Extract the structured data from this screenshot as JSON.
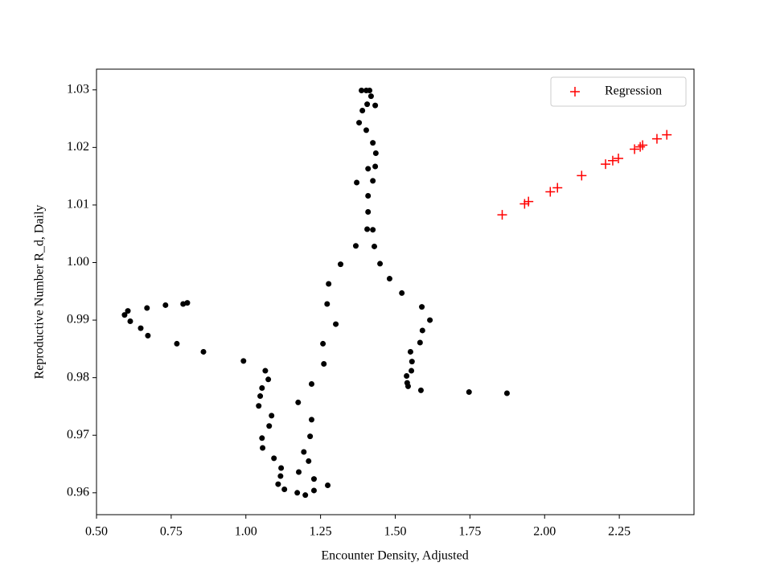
{
  "chart_data": {
    "type": "scatter",
    "xlabel": "Encounter Density, Adjusted",
    "ylabel": "Reproductive Number R_d, Daily",
    "xlim": [
      0.5,
      2.5
    ],
    "ylim": [
      0.9562,
      1.0336
    ],
    "xticks": [
      {
        "value": 0.5,
        "label": "0.50"
      },
      {
        "value": 0.75,
        "label": "0.75"
      },
      {
        "value": 1.0,
        "label": "1.00"
      },
      {
        "value": 1.25,
        "label": "1.25"
      },
      {
        "value": 1.5,
        "label": "1.50"
      },
      {
        "value": 1.75,
        "label": "1.75"
      },
      {
        "value": 2.0,
        "label": "2.00"
      },
      {
        "value": 2.25,
        "label": "2.25"
      }
    ],
    "yticks": [
      {
        "value": 0.96,
        "label": "0.96"
      },
      {
        "value": 0.97,
        "label": "0.97"
      },
      {
        "value": 0.98,
        "label": "0.98"
      },
      {
        "value": 0.99,
        "label": "0.99"
      },
      {
        "value": 1.0,
        "label": "1.00"
      },
      {
        "value": 1.01,
        "label": "1.01"
      },
      {
        "value": 1.02,
        "label": "1.02"
      },
      {
        "value": 1.03,
        "label": "1.03"
      }
    ],
    "legend": "upper right",
    "series": [
      {
        "color": "#000000",
        "marker": "o",
        "x": [
          0.594,
          0.605,
          0.613,
          0.648,
          0.672,
          0.669,
          0.731,
          0.769,
          0.79,
          0.804,
          0.858,
          0.992,
          1.065,
          1.075,
          1.054,
          1.048,
          1.043,
          1.086,
          1.078,
          1.054,
          1.056,
          1.094,
          1.118,
          1.116,
          1.108,
          1.129,
          1.172,
          1.199,
          1.228,
          1.228,
          1.274,
          1.177,
          1.21,
          1.194,
          1.215,
          1.22,
          1.175,
          1.22,
          1.261,
          1.258,
          1.272,
          1.277,
          1.301,
          1.317,
          1.368,
          1.371,
          1.379,
          1.39,
          1.387,
          1.403,
          1.414,
          1.419,
          1.406,
          1.433,
          1.403,
          1.425,
          1.435,
          1.433,
          1.409,
          1.425,
          1.409,
          1.409,
          1.425,
          1.406,
          1.43,
          1.449,
          1.481,
          1.522,
          1.589,
          1.616,
          1.591,
          1.583,
          1.551,
          1.556,
          1.554,
          1.538,
          1.54,
          1.543,
          1.586,
          1.747,
          1.874
        ],
        "values": [
          0.9909,
          0.9916,
          0.9898,
          0.9886,
          0.9873,
          0.9921,
          0.9926,
          0.9859,
          0.9928,
          0.993,
          0.9845,
          0.9829,
          0.9812,
          0.9797,
          0.9782,
          0.9768,
          0.9751,
          0.9734,
          0.9716,
          0.9695,
          0.9678,
          0.966,
          0.9643,
          0.9629,
          0.9615,
          0.9606,
          0.96,
          0.9596,
          0.9604,
          0.9624,
          0.9613,
          0.9636,
          0.9655,
          0.9671,
          0.9698,
          0.9727,
          0.9757,
          0.9789,
          0.9824,
          0.9859,
          0.9928,
          0.9963,
          0.9893,
          0.9997,
          1.0029,
          1.0139,
          1.0243,
          1.0264,
          1.0299,
          1.0299,
          1.0299,
          1.0289,
          1.0275,
          1.0273,
          1.023,
          1.0208,
          1.019,
          1.0167,
          1.0163,
          1.0142,
          1.0116,
          1.0088,
          1.0057,
          1.0058,
          1.0028,
          0.9998,
          0.9972,
          0.9947,
          0.9923,
          0.99,
          0.9882,
          0.9861,
          0.9845,
          0.9828,
          0.9812,
          0.9803,
          0.9791,
          0.9785,
          0.9778,
          0.9775,
          0.9773
        ]
      },
      {
        "name": "Regression",
        "color": "#ff0000",
        "marker": "+",
        "x": [
          1.858,
          1.933,
          1.946,
          2.019,
          2.043,
          2.124,
          2.204,
          2.228,
          2.247,
          2.301,
          2.32,
          2.328,
          2.376,
          2.409
        ],
        "values": [
          1.0083,
          1.0102,
          1.0106,
          1.0123,
          1.013,
          1.0151,
          1.0171,
          1.0177,
          1.0181,
          1.0197,
          1.0201,
          1.0204,
          1.0215,
          1.0222
        ]
      }
    ]
  }
}
